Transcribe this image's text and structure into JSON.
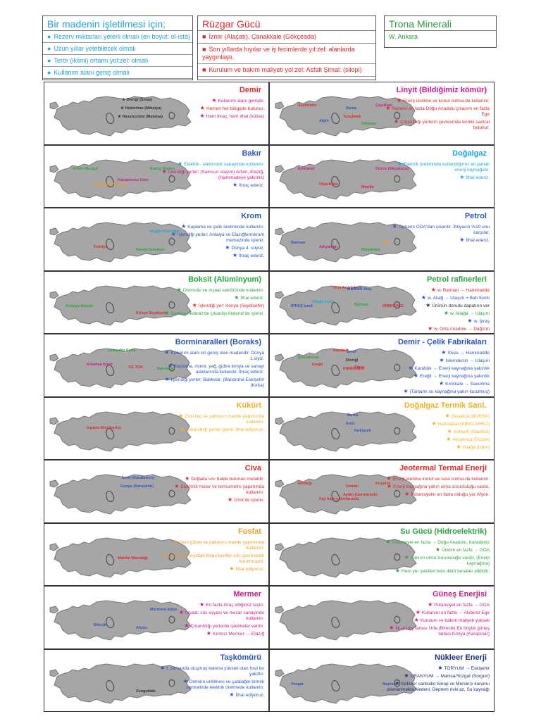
{
  "header": {
    "mine_box": {
      "title": "Bir madenin işletilmesi için;",
      "items": [
        "Rezerv miktarları yeterli olmalı (en boyut: ol-ısta)",
        "Uzun yıllar yetebilecek olmalı",
        "Terör (iklimi) ortamı yol:zel: olmalı",
        "Kullanım alanı geniş olmalı"
      ]
    },
    "wind_box": {
      "title": "Rüzgar Gücü",
      "items": [
        "İzmir (Alaçatı), Çanakkale (Gökçeada)",
        "Son yıllarda hıyılar ve iş fecimlerde yıl:zel: alanlarda yaygınlaştı.",
        "Kurulum ve bakım maliyeti yol:zel: Asfalt Şimal: (silopi)"
      ]
    },
    "trona_box": {
      "title": "Trona Minerali",
      "text": "W. Ankara"
    }
  },
  "cards": [
    {
      "title": "Demir",
      "title_color": "#e5252a",
      "labels": [
        {
          "t": "★ Divriği (Sivas)",
          "c": "#333"
        },
        {
          "t": "★ Hekimhan (Malatya)",
          "c": "#333"
        },
        {
          "t": "★ Hasançelebi (Malatya)",
          "c": "#333"
        }
      ],
      "bullets": [
        {
          "t": "Kullanım alanı geniştir.",
          "c": "#d5158d"
        },
        {
          "t": "Hemen her bölgede bulunur.",
          "c": "#e5252a"
        },
        {
          "t": "Hem ihraç, hem ithal (külise)",
          "c": "#d5158d"
        }
      ]
    },
    {
      "title": "Linyit (Bildiğimiz kömür)",
      "title_color": "#d5158d",
      "labels": [
        {
          "t": "Soma",
          "c": "#2b55c7"
        },
        {
          "t": "Tunçbilek",
          "c": "#e5252a"
        },
        {
          "t": "Seyitömer",
          "c": "#e5252a"
        },
        {
          "t": "Çayırhan",
          "c": "#d5158d"
        },
        {
          "t": "Afşin",
          "c": "#2b55c7"
        },
        {
          "t": "Elbistan",
          "c": "#27a83a"
        }
      ],
      "bullets": [
        {
          "t": "Enerji üretime ve konut ısıtma-da kullanılır.",
          "c": "#e5252a"
        },
        {
          "t": "Rezervi en fazla Doğu Anadolu çıkarımı en fazla Ege",
          "c": "#e5252a"
        },
        {
          "t": "Çıkarıldığı yerlerin çevresinde termik santral bulunur.",
          "c": "#e5252a"
        }
      ]
    },
    {
      "title": "Bakır",
      "title_color": "#2b55c7",
      "labels": [
        {
          "t": "Kastamonu Küre",
          "c": "#d5158d"
        },
        {
          "t": "Artvin Murgul",
          "c": "#27a83a"
        },
        {
          "t": "Elazığ Maden",
          "c": "#27a83a"
        },
        {
          "t": "Diyarbakır Ergani",
          "c": "#f29a1d"
        }
      ],
      "bullets": [
        {
          "t": "Elektrik - elektronik sanayinde kullanılır.",
          "c": "#1aa6d9"
        },
        {
          "t": "İşlendiği yerler; (Samsun ulaşım) Artvin, Elazığ, (Hammadeye yakınlık)",
          "c": "#d5158d"
        },
        {
          "t": "İhraç ederiz.",
          "c": "#2b55c7"
        }
      ]
    },
    {
      "title": "Doğalgaz",
      "title_color": "#1aa6d9",
      "labels": [
        {
          "t": "Kırklareli",
          "c": "#d5158d"
        },
        {
          "t": "Düzce (Akçakoca)",
          "c": "#d5158d"
        },
        {
          "t": "Diyarbakır",
          "c": "#e5252a"
        },
        {
          "t": "Mardin",
          "c": "#e5252a"
        }
      ],
      "bullets": [
        {
          "t": "Elektrik üretiminde kullandığımız en pahalı enerji kaynağıdır.",
          "c": "#1aa6d9"
        },
        {
          "t": "İthal ederiz.",
          "c": "#1aa6d9"
        }
      ]
    },
    {
      "title": "Krom",
      "title_color": "#2b55c7",
      "labels": [
        {
          "t": "Muğla Köyceğiz",
          "c": "#1aa6d9"
        },
        {
          "t": "Fethiye",
          "c": "#e5252a"
        },
        {
          "t": "Elazığ Guleman",
          "c": "#27a83a"
        }
      ],
      "bullets": [
        {
          "t": "Kaplama ve çelik üretiminde kullanılır.",
          "c": "#2b55c7"
        },
        {
          "t": "İşlendiği yerler; Antalya ve Elazığferrokram merkezinde işlenir.",
          "c": "#2b55c7"
        },
        {
          "t": "Dünya 4. süyüz.",
          "c": "#2b55c7"
        },
        {
          "t": "İhraç ederiz.",
          "c": "#2b55c7"
        }
      ]
    },
    {
      "title": "Petrol",
      "title_color": "#2b55c7",
      "labels": [
        {
          "t": "Adıyaman",
          "c": "#d5158d"
        },
        {
          "t": "Diyarbakır",
          "c": "#27a83a"
        },
        {
          "t": "Batman",
          "c": "#2b55c7"
        },
        {
          "t": "Siirt",
          "c": "#f29a1d"
        }
      ],
      "bullets": [
        {
          "t": "Tamamı GDA'dan çıkarılır. İhtiyacın %10 unu karşılar.",
          "c": "#2b55c7"
        },
        {
          "t": "İthal ederiz.",
          "c": "#2b55c7"
        }
      ]
    },
    {
      "title": "Boksit (Alüminyum)",
      "title_color": "#27a83a",
      "labels": [
        {
          "t": "Konya Seydişehir",
          "c": "#e5252a"
        },
        {
          "t": "Antalya Akseki",
          "c": "#27a83a"
        }
      ],
      "bullets": [
        {
          "t": "Otomotiv ve inşaat sektöründe kullanılır.",
          "c": "#27a83a"
        },
        {
          "t": "İthal ederiz.",
          "c": "#27a83a"
        },
        {
          "t": "İşlendiği yer: Konya (Seydişehir)",
          "c": "#e5252a"
        },
        {
          "t": "Sadece Akdeniz'de çıkarılıp Akdeniz'de işlenir.",
          "c": "#27a83a"
        }
      ]
    },
    {
      "title": "Petrol rafinerleri",
      "title_color": "#27a83a",
      "labels": [
        {
          "t": "İPRAŞ İzmit",
          "c": "#2b55c7"
        },
        {
          "t": "KIRIKKALE",
          "c": "#e5252a"
        },
        {
          "t": "Orta Anadolu",
          "c": "#e5252a"
        },
        {
          "t": "Aliağa İzmir",
          "c": "#1aa6d9"
        },
        {
          "t": "Batman",
          "c": "#27a83a"
        },
        {
          "t": "MERSİN Ataş",
          "c": "#2b55c7"
        }
      ],
      "bullets": [
        {
          "t": "w. Batman → Hammadde",
          "c": "#e5252a"
        },
        {
          "t": "w. Aliağ → Ulaşım + Batı Kenti",
          "c": "#2b55c7"
        },
        {
          "t": "Ürünün dorudu dapatırın ver",
          "c": "#333"
        },
        {
          "t": "w. Aliağa → Ulaşım",
          "c": "#27a83a"
        },
        {
          "t": "w. İpraş",
          "c": "#2b55c7"
        },
        {
          "t": "w. Orta Anadolu → Dağıtım",
          "c": "#e5252a"
        }
      ]
    },
    {
      "title": "Borminaralleri (Boraks)",
      "title_color": "#2b55c7",
      "labels": [
        {
          "t": "Bandırma",
          "c": "#27a83a"
        },
        {
          "t": "Eskişehir Kırka",
          "c": "#27a83a"
        },
        {
          "t": "Kütahya Emet",
          "c": "#d5158d"
        },
        {
          "t": "FE TOK",
          "c": "#e5252a"
        }
      ],
      "bullets": [
        {
          "t": "Kullanım alanı en geniş olan madendir. Dünya 1.siyiz.",
          "c": "#2b55c7"
        },
        {
          "t": "Kaplama, motor, yağ, gübre kimya ve sanayi alanlarında kullanılır. İhraç ederiz.",
          "c": "#2b55c7"
        },
        {
          "t": "İşlendiği yerler: Balıkesir, (Bandırma Eskişehir (Kırka)",
          "c": "#2b55c7"
        }
      ]
    },
    {
      "title": "Demir - Çelik Fabrikaları",
      "title_color": "#2b55c7",
      "labels": [
        {
          "t": "Karabük",
          "c": "#e5252a"
        },
        {
          "t": "Ereğli",
          "c": "#e5252a"
        },
        {
          "t": "Sivas",
          "c": "#e5252a"
        },
        {
          "t": "İzmir",
          "c": "#2b55c7"
        },
        {
          "t": "Divriği",
          "c": "#333"
        },
        {
          "t": "KIRIKKALE",
          "c": "#e5252a"
        },
        {
          "t": "İskenderun",
          "c": "#27a83a"
        }
      ],
      "bullets": [
        {
          "t": "Sivas → Hammadde",
          "c": "#2b55c7"
        },
        {
          "t": "İskenderun → Ulaşım",
          "c": "#2b55c7"
        },
        {
          "t": "Karabük → Enerji kaynağına yakınlık",
          "c": "#2b55c7"
        },
        {
          "t": "Ereğli → Enerji kaynağına yakınlık",
          "c": "#2b55c7"
        },
        {
          "t": "Kırıkkale → Savunma",
          "c": "#2b55c7"
        },
        {
          "t": "(Tamamı su kaynağına yakın kurulmuş)",
          "c": "#2b55c7"
        }
      ]
    },
    {
      "title": "Kükürt",
      "title_color": "#f0b21a",
      "labels": [
        {
          "t": "Isparta (Keçiborlu)",
          "c": "#e5252a"
        }
      ],
      "bullets": [
        {
          "t": "Zirai ilaç ve patlayıcı madde yapımında kullanılır.",
          "c": "#f0b21a"
        },
        {
          "t": "Çıkarıldığı yerde işlenir. İthal ediyoruz.",
          "c": "#f0b21a"
        }
      ]
    },
    {
      "title": "Doğalgaz Termik Sant.",
      "title_color": "#f0b21a",
      "labels": [
        {
          "t": "Kırklareli",
          "c": "#2b55c7"
        },
        {
          "t": "Bursa",
          "c": "#2b55c7"
        },
        {
          "t": "İzmir",
          "c": "#2b55c7"
        }
      ],
      "bullets": [
        {
          "t": "Ovaakça (BURSA)",
          "c": "#f0b21a"
        },
        {
          "t": "Hamitabat (KIRKLARELİ)",
          "c": "#f0b21a"
        },
        {
          "t": "Ambarlı (İstanbul)",
          "c": "#f0b21a"
        },
        {
          "t": "Akçakoca (Düzce)",
          "c": "#f0b21a"
        },
        {
          "t": "Aliağa (İzmir)",
          "c": "#f0b21a"
        }
      ]
    },
    {
      "title": "Civa",
      "title_color": "#e5252a",
      "labels": [
        {
          "t": "İzmir (Karaburun)",
          "c": "#2b55c7"
        },
        {
          "t": "Konya (Sarayönü)",
          "c": "#2b55c7"
        }
      ],
      "bullets": [
        {
          "t": "Doğada sıvı halde bulunan metaldir.",
          "c": "#e5252a"
        },
        {
          "t": "Elektrikli motor ve termometre yapımında kullanılır.",
          "c": "#e5252a"
        },
        {
          "t": "İzmir'de işlenir.",
          "c": "#e5252a"
        }
      ]
    },
    {
      "title": "Jeotermal Termal Enerji",
      "title_color": "#e5252a",
      "labels": [
        {
          "t": "Denizli",
          "c": "#e5252a"
        },
        {
          "t": "Aydın (Germencik)",
          "c": "#e5252a"
        },
        {
          "t": "İdirdağı",
          "c": "#e5252a"
        },
        {
          "t": "Kırşehir",
          "c": "#e5252a"
        },
        {
          "t": "Fay hattı yakınlarında",
          "c": "#e5252a"
        }
      ],
      "bullets": [
        {
          "t": "Enerji üretime konut ve sera ısıtma-da kullanılır.",
          "c": "#e5252a"
        },
        {
          "t": "Enerji kaynağına yakın olma zorunluluğu vardır.",
          "c": "#e5252a"
        },
        {
          "t": "Potansiyelin en fazla olduğu yer Afyon.",
          "c": "#e5252a"
        }
      ]
    },
    {
      "title": "Fosfat",
      "title_color": "#f29a1d",
      "labels": [
        {
          "t": "Mardin Mazıdağı",
          "c": "#e5252a"
        }
      ],
      "bullets": [
        {
          "t": "Suni gübre ve patlayıcı madde yapımında kullanılır.",
          "c": "#f29a1d"
        },
        {
          "t": "İşletmeler kıyıdaki liman kentler-inin çevresinde kurulmuştur.",
          "c": "#f29a1d"
        },
        {
          "t": "İthal ediyoruz.",
          "c": "#f29a1d"
        }
      ]
    },
    {
      "title": "Su Gücü (Hidroelektrik)",
      "title_color": "#27a83a",
      "labels": [],
      "bullets": [
        {
          "t": "Potansiyel en fazla → Doğu Anadolu, Karadeniz",
          "c": "#27a83a"
        },
        {
          "t": "Üretim en fazla → GDA",
          "c": "#27a83a"
        },
        {
          "t": "Yatırım olma zorunluluğu vardır. (Enerji kaynağına)",
          "c": "#27a83a"
        },
        {
          "t": "Hem yer şekilleri hem iklim beraber etkilidir.",
          "c": "#27a83a"
        }
      ]
    },
    {
      "title": "Mermer",
      "title_color": "#d5158d",
      "labels": [
        {
          "t": "Marmara adası",
          "c": "#2b55c7"
        },
        {
          "t": "Bilecik",
          "c": "#2b55c7"
        },
        {
          "t": "Afyon",
          "c": "#2b55c7"
        }
      ],
      "bullets": [
        {
          "t": "En fazla ihraç ettiğimiz taştır.",
          "c": "#d5158d"
        },
        {
          "t": "İnşaat, süs eşyası ve mezar sanayinde kullanılır.",
          "c": "#d5158d"
        },
        {
          "t": "Çıkarıldığı yerlerde işletmeler vardır.",
          "c": "#d5158d"
        },
        {
          "t": "Kırmızı Mermer → Elazığ",
          "c": "#d5158d"
        }
      ]
    },
    {
      "title": "Güneş Enerjisi",
      "title_color": "#d5158d",
      "labels": [],
      "bullets": [
        {
          "t": "Potansiyel en fazla → GDA",
          "c": "#d5158d"
        },
        {
          "t": "Kullanım en fazla → Akdeniz Ege",
          "c": "#d5158d"
        },
        {
          "t": "Kurulum ve bakım maliyeti yüksek",
          "c": "#d5158d"
        },
        {
          "t": "İlk güneş tarlası Urfa (Birecik) En büyük güneş tarlası Konya (Karapınar)",
          "c": "#d5158d"
        }
      ]
    },
    {
      "title": "Taşkömürü",
      "title_color": "#2b55c7",
      "labels": [
        {
          "t": "Zonguldak",
          "c": "#333"
        }
      ],
      "bullets": [
        {
          "t": "I. zamanda oluşmuş kalorisi yüksek olan fosil bir yakıttır.",
          "c": "#2b55c7"
        },
        {
          "t": "Demirin eritilmesi ve çatalağın termik santralinde elektrik üretmede kullanılır.",
          "c": "#2b55c7"
        },
        {
          "t": "İthal ediyoruz.",
          "c": "#2b55c7"
        }
      ]
    },
    {
      "title": "Nükleer Enerji",
      "title_color": "#1d2f7a",
      "labels": [
        {
          "t": "Yozgat",
          "c": "#2b55c7"
        },
        {
          "t": "Manisa",
          "c": "#2b55c7"
        }
      ],
      "bullets": [
        {
          "t": "TORYUM → Eskişehir",
          "c": "#1d2f7a"
        },
        {
          "t": "URANYUM → Manisa/Yozgat (Sorgun)",
          "c": "#1d2f7a"
        },
        {
          "t": "Nükleer santralin Sinop ve Mersin'e kurumu planlanmakta Nedeni; Deprem riski az, Su kaynağı",
          "c": "#1d2f7a"
        }
      ]
    }
  ]
}
